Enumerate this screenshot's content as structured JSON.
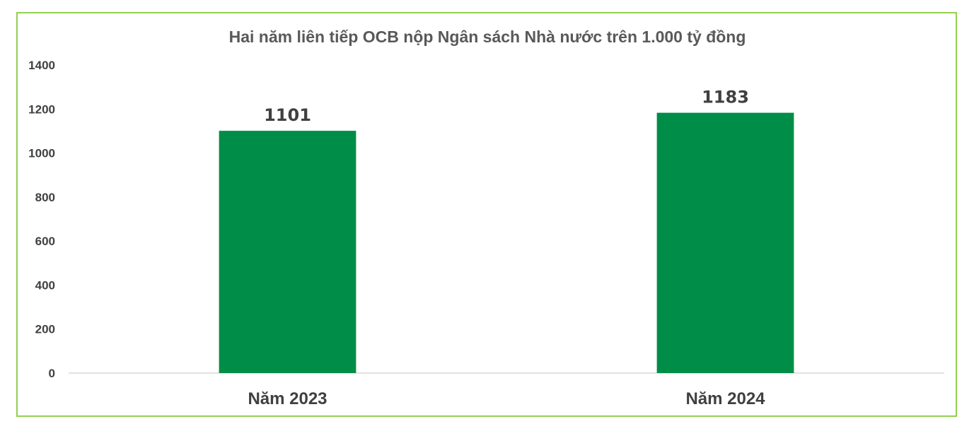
{
  "chart_data": {
    "type": "bar",
    "title": "Hai năm liên tiếp OCB nộp Ngân sách Nhà nước trên 1.000 tỷ đồng",
    "categories": [
      "Năm 2023",
      "Năm 2024"
    ],
    "values": [
      1101,
      1183
    ],
    "data_labels": [
      "1101",
      "1183"
    ],
    "yticks": [
      "0",
      "200",
      "400",
      "600",
      "800",
      "1000",
      "1200",
      "1400"
    ],
    "ylim": [
      0,
      1400
    ],
    "xlabel": "",
    "ylabel": "",
    "grid": false,
    "legend": "none",
    "bar_color": "#008d48",
    "border_color": "#92d050"
  }
}
